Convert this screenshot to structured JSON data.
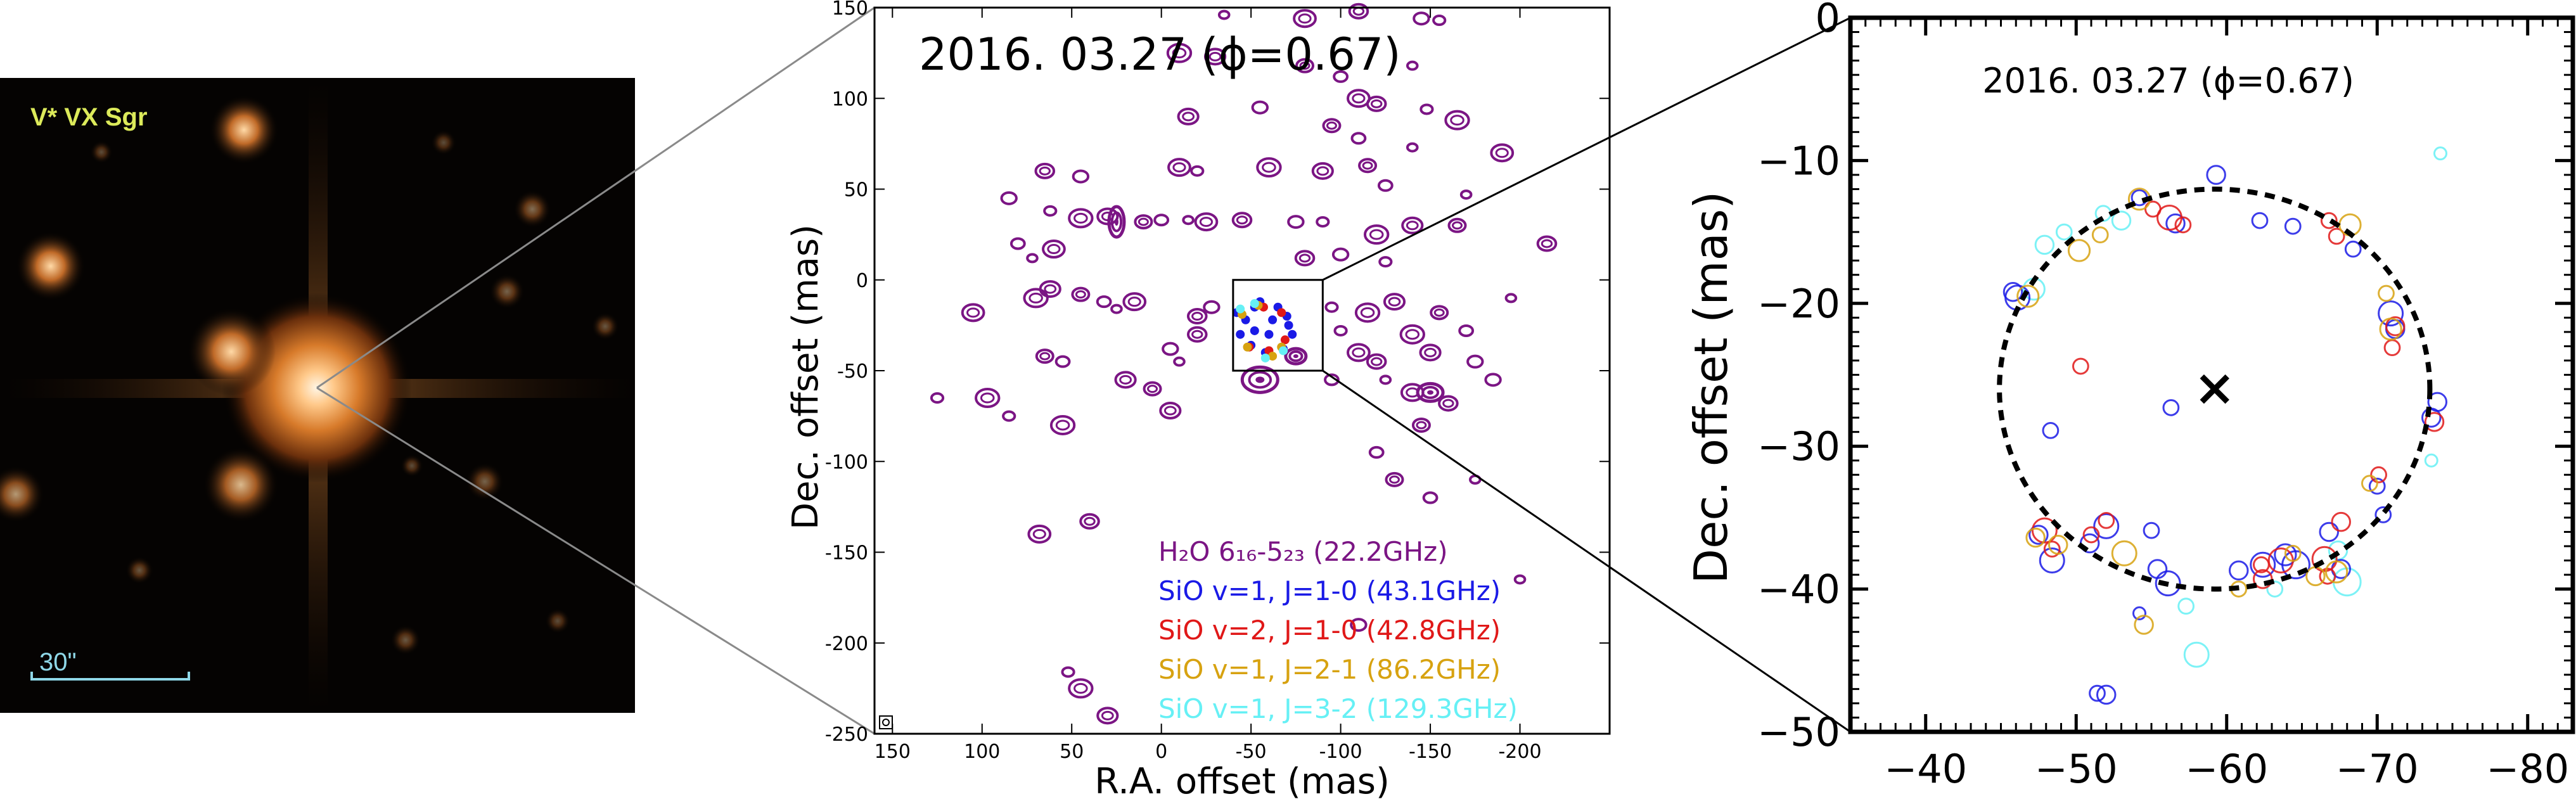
{
  "image_panel": {
    "star_label": "V* VX Sgr",
    "scale_label": "30\""
  },
  "colors": {
    "h2o": "#7b1584",
    "sio_v1_j10": "#1a1ae6",
    "sio_v2_j10": "#e01818",
    "sio_v1_j21": "#d7a210",
    "sio_v1_j32": "#66f0f5",
    "optical_label": "#dcea5a",
    "scalebar": "#8fd8e8"
  },
  "chart_data": [
    {
      "type": "scatter",
      "title": "2016. 03.27 (ϕ=0.67)",
      "xlabel": "R.A. offset (mas)",
      "ylabel": "Dec. offset (mas)",
      "xlim": [
        160,
        -250
      ],
      "ylim": [
        -250,
        150
      ],
      "xticks": [
        150,
        100,
        50,
        0,
        -50,
        -100,
        -150,
        -200
      ],
      "yticks": [
        150,
        100,
        50,
        0,
        -50,
        -100,
        -150,
        -200,
        -250
      ],
      "xtick_labels": [
        "150",
        "100",
        "50",
        "0",
        "-50",
        "-100",
        "-150",
        "-200"
      ],
      "ytick_labels": [
        "150",
        "100",
        "50",
        "0",
        "-50",
        "-100",
        "-150",
        "-200",
        "-250"
      ],
      "zoom_box": {
        "x": [
          -40,
          -90
        ],
        "y": [
          0,
          -50
        ]
      },
      "legend": [
        {
          "text": "H₂O 6₁₆-5₂₃ (22.2GHz)",
          "color": "#7b1584"
        },
        {
          "text": "SiO v=1, J=1-0 (43.1GHz)",
          "color": "#1a1ae6"
        },
        {
          "text": "SiO v=2, J=1-0 (42.8GHz)",
          "color": "#e01818"
        },
        {
          "text": "SiO v=1, J=2-1 (86.2GHz)",
          "color": "#d7a210"
        },
        {
          "text": "SiO v=1, J=3-2 (129.3GHz)",
          "color": "#66f0f5"
        }
      ],
      "series": [
        {
          "name": "H2O 22.2GHz maser spots",
          "color": "#7b1584",
          "points": [
            [
              -35,
              146
            ],
            [
              -80,
              144
            ],
            [
              -110,
              148
            ],
            [
              -145,
              144
            ],
            [
              -155,
              143
            ],
            [
              -10,
              125
            ],
            [
              -30,
              123
            ],
            [
              -80,
              118
            ],
            [
              -100,
              112
            ],
            [
              -140,
              118
            ],
            [
              -110,
              100
            ],
            [
              -120,
              97
            ],
            [
              -55,
              95
            ],
            [
              -148,
              94
            ],
            [
              -165,
              88
            ],
            [
              -15,
              90
            ],
            [
              -95,
              85
            ],
            [
              -110,
              78
            ],
            [
              -140,
              73
            ],
            [
              -190,
              70
            ],
            [
              65,
              60
            ],
            [
              45,
              57
            ],
            [
              -20,
              60
            ],
            [
              -60,
              62
            ],
            [
              -90,
              60
            ],
            [
              -115,
              63
            ],
            [
              -125,
              52
            ],
            [
              -170,
              47
            ],
            [
              -10,
              62
            ],
            [
              -215,
              20
            ],
            [
              85,
              45
            ],
            [
              62,
              38
            ],
            [
              45,
              34
            ],
            [
              30,
              35
            ],
            [
              10,
              32
            ],
            [
              0,
              33
            ],
            [
              -15,
              33
            ],
            [
              -25,
              32
            ],
            [
              -45,
              33
            ],
            [
              -75,
              32
            ],
            [
              -90,
              32
            ],
            [
              -120,
              25
            ],
            [
              -140,
              30
            ],
            [
              -165,
              30
            ],
            [
              80,
              20
            ],
            [
              72,
              12
            ],
            [
              60,
              17
            ],
            [
              -80,
              12
            ],
            [
              -100,
              14
            ],
            [
              -125,
              10
            ],
            [
              70,
              -10
            ],
            [
              62,
              -5
            ],
            [
              45,
              -8
            ],
            [
              32,
              -12
            ],
            [
              25,
              -16
            ],
            [
              15,
              -12
            ],
            [
              -20,
              -20
            ],
            [
              -28,
              -15
            ],
            [
              -95,
              -15
            ],
            [
              -115,
              -18
            ],
            [
              -130,
              -12
            ],
            [
              -155,
              -18
            ],
            [
              -170,
              -28
            ],
            [
              -195,
              -10
            ],
            [
              105,
              -18
            ],
            [
              -20,
              -30
            ],
            [
              -5,
              -38
            ],
            [
              -100,
              -28
            ],
            [
              -140,
              -30
            ],
            [
              -150,
              -40
            ],
            [
              65,
              -42
            ],
            [
              55,
              -45
            ],
            [
              -10,
              -45
            ],
            [
              -110,
              -40
            ],
            [
              -120,
              -45
            ],
            [
              -175,
              -45
            ],
            [
              125,
              -65
            ],
            [
              97,
              -65
            ],
            [
              20,
              -55
            ],
            [
              5,
              -60
            ],
            [
              -95,
              -55
            ],
            [
              -125,
              -55
            ],
            [
              -140,
              -62
            ],
            [
              -160,
              -68
            ],
            [
              -185,
              -55
            ],
            [
              85,
              -75
            ],
            [
              55,
              -80
            ],
            [
              -5,
              -72
            ],
            [
              -145,
              -80
            ],
            [
              -120,
              -95
            ],
            [
              -175,
              -110
            ],
            [
              68,
              -140
            ],
            [
              40,
              -133
            ],
            [
              -110,
              -190
            ],
            [
              52,
              -216
            ],
            [
              45,
              -225
            ],
            [
              30,
              -240
            ],
            [
              -130,
              -110
            ],
            [
              -150,
              -120
            ],
            [
              -200,
              -165
            ]
          ]
        },
        {
          "name": "SiO v=1 J=1-0 (overview)",
          "color": "#1a1ae6",
          "points": [
            [
              -42,
              -18
            ],
            [
              -47,
              -22
            ],
            [
              -52,
              -15
            ],
            [
              -62,
              -22
            ],
            [
              -70,
              -20
            ],
            [
              -73,
              -30
            ],
            [
              -68,
              -38
            ],
            [
              -58,
              -40
            ],
            [
              -50,
              -36
            ],
            [
              -44,
              -30
            ],
            [
              -55,
              -12
            ],
            [
              -65,
              -15
            ],
            [
              -52,
              -28
            ],
            [
              -60,
              -30
            ],
            [
              -71,
              -25
            ]
          ]
        },
        {
          "name": "SiO v=2 J=1-0 (overview)",
          "color": "#e01818",
          "points": [
            [
              -49,
              -37
            ],
            [
              -57,
              -15
            ],
            [
              -67,
              -18
            ],
            [
              -69,
              -33
            ],
            [
              -60,
              -39
            ]
          ]
        },
        {
          "name": "SiO v=1 J=2-1 (overview)",
          "color": "#d7a210",
          "points": [
            [
              -45,
              -19
            ],
            [
              -48,
              -37
            ],
            [
              -54,
              -14
            ],
            [
              -67,
              -37
            ],
            [
              -62,
              -42
            ]
          ]
        },
        {
          "name": "SiO v=1 J=3-2 (overview)",
          "color": "#66f0f5",
          "points": [
            [
              -44,
              -16
            ],
            [
              -58,
              -43
            ],
            [
              -52,
              -13
            ],
            [
              -68,
              -39
            ]
          ]
        }
      ]
    },
    {
      "type": "scatter",
      "title": "2016. 03.27 (ϕ=0.67)",
      "xlabel": "",
      "ylabel": "Dec. offset (mas)",
      "xlim": [
        -35,
        -83
      ],
      "ylim": [
        -50,
        0
      ],
      "xticks": [
        -40,
        -50,
        -60,
        -70,
        -80
      ],
      "yticks": [
        0,
        -10,
        -20,
        -30,
        -40,
        -50
      ],
      "xtick_labels": [
        "−40",
        "−50",
        "−60",
        "−70",
        "−80"
      ],
      "ytick_labels": [
        "0",
        "−10",
        "−20",
        "−30",
        "−40",
        "−50"
      ],
      "ring": {
        "center": [
          -59.2,
          -26
        ],
        "radius_x": 14.3,
        "radius_y": 14.0
      },
      "center_marker": [
        -59.2,
        -26
      ],
      "series": [
        {
          "name": "SiO v=1, J=1-0 (43.1GHz)",
          "color": "#1a1ae6",
          "points": [
            [
              -54.2,
              -12.6,
              0.5
            ],
            [
              -56.6,
              -14.4,
              0.6
            ],
            [
              -59.3,
              -11.0,
              0.6
            ],
            [
              -62.2,
              -14.2,
              0.5
            ],
            [
              -64.4,
              -14.6,
              0.5
            ],
            [
              -68.4,
              -16.2,
              0.5
            ],
            [
              -70.9,
              -20.7,
              0.8
            ],
            [
              -71.2,
              -21.8,
              0.6
            ],
            [
              -74.0,
              -26.9,
              0.6
            ],
            [
              -73.6,
              -28.0,
              0.6
            ],
            [
              -70.0,
              -32.8,
              0.5
            ],
            [
              -70.4,
              -34.8,
              0.5
            ],
            [
              -66.8,
              -36.0,
              0.6
            ],
            [
              -64.6,
              -38.3,
              0.9
            ],
            [
              -62.4,
              -38.3,
              0.8
            ],
            [
              -63.9,
              -37.6,
              0.7
            ],
            [
              -60.8,
              -38.7,
              0.6
            ],
            [
              -56.1,
              -39.6,
              0.8
            ],
            [
              -55.4,
              -38.6,
              0.6
            ],
            [
              -55.0,
              -35.9,
              0.5
            ],
            [
              -52.0,
              -35.6,
              0.8
            ],
            [
              -50.9,
              -36.8,
              0.6
            ],
            [
              -48.4,
              -38.0,
              0.8
            ],
            [
              -47.5,
              -36.2,
              0.6
            ],
            [
              -46.1,
              -19.6,
              0.8
            ],
            [
              -45.8,
              -19.2,
              0.6
            ],
            [
              -48.3,
              -28.9,
              0.5
            ],
            [
              -52.0,
              -47.4,
              0.6
            ],
            [
              -51.4,
              -47.3,
              0.5
            ],
            [
              -56.3,
              -27.3,
              0.5
            ],
            [
              -54.2,
              -41.7,
              0.4
            ],
            [
              -67.6,
              -38.6,
              0.6
            ]
          ]
        },
        {
          "name": "SiO v=2, J=1-0 (42.8GHz)",
          "color": "#e01818",
          "points": [
            [
              -55.1,
              -13.4,
              0.5
            ],
            [
              -56.2,
              -14.0,
              0.8
            ],
            [
              -57.1,
              -14.5,
              0.5
            ],
            [
              -66.8,
              -14.2,
              0.5
            ],
            [
              -67.3,
              -15.3,
              0.5
            ],
            [
              -71.2,
              -21.6,
              0.6
            ],
            [
              -71.0,
              -23.1,
              0.5
            ],
            [
              -73.8,
              -28.3,
              0.6
            ],
            [
              -70.1,
              -32.0,
              0.5
            ],
            [
              -67.6,
              -35.3,
              0.6
            ],
            [
              -66.5,
              -37.9,
              0.8
            ],
            [
              -63.6,
              -38.0,
              0.8
            ],
            [
              -62.4,
              -39.3,
              0.6
            ],
            [
              -62.3,
              -38.3,
              0.5
            ],
            [
              -47.9,
              -35.9,
              0.8
            ],
            [
              -48.4,
              -37.2,
              0.5
            ],
            [
              -51.0,
              -36.2,
              0.5
            ],
            [
              -52.0,
              -35.2,
              0.5
            ],
            [
              -50.3,
              -24.4,
              0.5
            ],
            [
              -66.7,
              -39.1,
              0.5
            ]
          ]
        },
        {
          "name": "SiO v=1, J=2-1 (86.2GHz)",
          "color": "#d7a210",
          "points": [
            [
              -54.2,
              -12.7,
              0.7
            ],
            [
              -50.2,
              -16.3,
              0.7
            ],
            [
              -51.6,
              -15.2,
              0.5
            ],
            [
              -68.2,
              -14.5,
              0.7
            ],
            [
              -70.9,
              -21.8,
              0.7
            ],
            [
              -70.6,
              -19.3,
              0.5
            ],
            [
              -46.8,
              -19.5,
              0.7
            ],
            [
              -47.3,
              -36.4,
              0.6
            ],
            [
              -48.8,
              -36.9,
              0.6
            ],
            [
              -53.2,
              -37.5,
              0.8
            ],
            [
              -54.5,
              -42.5,
              0.6
            ],
            [
              -60.8,
              -40.0,
              0.5
            ],
            [
              -67.3,
              -38.8,
              0.7
            ],
            [
              -65.9,
              -39.1,
              0.6
            ],
            [
              -64.4,
              -37.5,
              0.5
            ],
            [
              -69.5,
              -32.6,
              0.5
            ]
          ]
        },
        {
          "name": "SiO v=1, J=3-2 (129.3GHz)",
          "color": "#66f0f5",
          "points": [
            [
              -53.0,
              -14.2,
              0.6
            ],
            [
              -51.8,
              -13.7,
              0.5
            ],
            [
              -47.2,
              -19.0,
              0.7
            ],
            [
              -47.9,
              -15.9,
              0.6
            ],
            [
              -58.0,
              -44.6,
              0.8
            ],
            [
              -68.0,
              -39.5,
              0.9
            ],
            [
              -67.4,
              -37.3,
              0.6
            ],
            [
              -74.2,
              -9.5,
              0.4
            ],
            [
              -73.6,
              -31.0,
              0.4
            ],
            [
              -57.3,
              -41.2,
              0.5
            ],
            [
              -49.2,
              -15.0,
              0.5
            ],
            [
              -63.2,
              -40.0,
              0.5
            ]
          ]
        }
      ]
    }
  ]
}
